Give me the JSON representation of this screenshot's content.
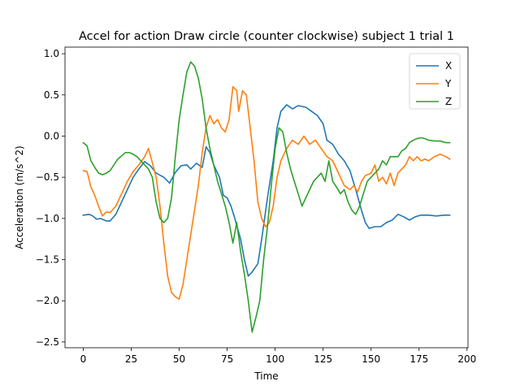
{
  "chart_data": {
    "type": "line",
    "title": "Accel for action Draw circle (counter clockwise) subject 1 trial 1",
    "xlabel": "Time",
    "ylabel": "Acceleration (m/s^2)",
    "xlim": [
      -9.5,
      200.5
    ],
    "ylim": [
      -2.57,
      1.08
    ],
    "xticks": [
      0,
      25,
      50,
      75,
      100,
      125,
      150,
      175,
      200
    ],
    "yticks": [
      -2.5,
      -2.0,
      -1.5,
      -1.0,
      -0.5,
      0.0,
      0.5,
      1.0
    ],
    "ytick_labels": [
      "−2.5",
      "−2.0",
      "−1.5",
      "−1.0",
      "−0.5",
      "0.0",
      "0.5",
      "1.0"
    ],
    "grid": false,
    "legend_position": "top-right",
    "series": [
      {
        "name": "X",
        "color": "#1f77b4",
        "points": [
          [
            0,
            -0.96
          ],
          [
            3,
            -0.95
          ],
          [
            5,
            -0.97
          ],
          [
            7,
            -1.01
          ],
          [
            9,
            -1.0
          ],
          [
            12,
            -1.03
          ],
          [
            14,
            -1.03
          ],
          [
            17,
            -0.95
          ],
          [
            20,
            -0.8
          ],
          [
            23,
            -0.65
          ],
          [
            26,
            -0.5
          ],
          [
            29,
            -0.4
          ],
          [
            32,
            -0.31
          ],
          [
            35,
            -0.36
          ],
          [
            38,
            -0.45
          ],
          [
            42,
            -0.5
          ],
          [
            45,
            -0.57
          ],
          [
            48,
            -0.44
          ],
          [
            51,
            -0.36
          ],
          [
            54,
            -0.35
          ],
          [
            56,
            -0.4
          ],
          [
            59,
            -0.33
          ],
          [
            62,
            -0.38
          ],
          [
            64,
            -0.13
          ],
          [
            66,
            -0.2
          ],
          [
            68,
            -0.35
          ],
          [
            71,
            -0.5
          ],
          [
            73,
            -0.72
          ],
          [
            75,
            -0.75
          ],
          [
            77,
            -0.85
          ],
          [
            79,
            -1.0
          ],
          [
            82,
            -1.25
          ],
          [
            84,
            -1.5
          ],
          [
            86,
            -1.7
          ],
          [
            88,
            -1.65
          ],
          [
            91,
            -1.55
          ],
          [
            93,
            -1.25
          ],
          [
            96,
            -0.75
          ],
          [
            99,
            -0.3
          ],
          [
            101,
            0.1
          ],
          [
            103,
            0.3
          ],
          [
            106,
            0.38
          ],
          [
            109,
            0.33
          ],
          [
            112,
            0.37
          ],
          [
            116,
            0.35
          ],
          [
            119,
            0.3
          ],
          [
            122,
            0.25
          ],
          [
            125,
            0.15
          ],
          [
            127,
            -0.05
          ],
          [
            130,
            -0.1
          ],
          [
            133,
            -0.22
          ],
          [
            136,
            -0.3
          ],
          [
            139,
            -0.42
          ],
          [
            142,
            -0.65
          ],
          [
            145,
            -0.9
          ],
          [
            147,
            -1.05
          ],
          [
            149,
            -1.12
          ],
          [
            152,
            -1.1
          ],
          [
            155,
            -1.1
          ],
          [
            158,
            -1.05
          ],
          [
            161,
            -1.02
          ],
          [
            164,
            -0.95
          ],
          [
            167,
            -0.98
          ],
          [
            170,
            -1.02
          ],
          [
            173,
            -0.98
          ],
          [
            176,
            -0.96
          ],
          [
            180,
            -0.96
          ],
          [
            184,
            -0.97
          ],
          [
            188,
            -0.96
          ],
          [
            191,
            -0.96
          ]
        ]
      },
      {
        "name": "Y",
        "color": "#ff7f0e",
        "points": [
          [
            0,
            -0.42
          ],
          [
            2,
            -0.43
          ],
          [
            4,
            -0.62
          ],
          [
            6,
            -0.72
          ],
          [
            8,
            -0.85
          ],
          [
            10,
            -0.97
          ],
          [
            12,
            -0.92
          ],
          [
            14,
            -0.93
          ],
          [
            17,
            -0.85
          ],
          [
            20,
            -0.7
          ],
          [
            23,
            -0.55
          ],
          [
            26,
            -0.43
          ],
          [
            29,
            -0.35
          ],
          [
            32,
            -0.25
          ],
          [
            34,
            -0.15
          ],
          [
            36,
            -0.32
          ],
          [
            38,
            -0.5
          ],
          [
            40,
            -0.85
          ],
          [
            42,
            -1.3
          ],
          [
            44,
            -1.7
          ],
          [
            46,
            -1.9
          ],
          [
            48,
            -1.95
          ],
          [
            50,
            -1.98
          ],
          [
            52,
            -1.8
          ],
          [
            54,
            -1.5
          ],
          [
            56,
            -1.2
          ],
          [
            58,
            -0.9
          ],
          [
            60,
            -0.6
          ],
          [
            62,
            -0.2
          ],
          [
            64,
            0.1
          ],
          [
            66,
            0.25
          ],
          [
            68,
            0.15
          ],
          [
            70,
            0.2
          ],
          [
            72,
            0.1
          ],
          [
            74,
            0.05
          ],
          [
            76,
            0.2
          ],
          [
            78,
            0.6
          ],
          [
            80,
            0.55
          ],
          [
            81,
            0.3
          ],
          [
            83,
            0.55
          ],
          [
            85,
            0.5
          ],
          [
            87,
            0.1
          ],
          [
            89,
            -0.3
          ],
          [
            91,
            -0.8
          ],
          [
            93,
            -1.0
          ],
          [
            95,
            -1.1
          ],
          [
            97,
            -1.05
          ],
          [
            99,
            -0.85
          ],
          [
            101,
            -0.5
          ],
          [
            103,
            -0.3
          ],
          [
            106,
            -0.15
          ],
          [
            109,
            -0.05
          ],
          [
            112,
            -0.1
          ],
          [
            115,
            0.0
          ],
          [
            118,
            -0.1
          ],
          [
            121,
            -0.05
          ],
          [
            124,
            -0.15
          ],
          [
            127,
            -0.25
          ],
          [
            130,
            -0.3
          ],
          [
            133,
            -0.45
          ],
          [
            136,
            -0.6
          ],
          [
            139,
            -0.65
          ],
          [
            141,
            -0.6
          ],
          [
            143,
            -0.68
          ],
          [
            145,
            -0.55
          ],
          [
            147,
            -0.48
          ],
          [
            150,
            -0.45
          ],
          [
            152,
            -0.35
          ],
          [
            154,
            -0.55
          ],
          [
            156,
            -0.5
          ],
          [
            158,
            -0.58
          ],
          [
            160,
            -0.45
          ],
          [
            162,
            -0.6
          ],
          [
            164,
            -0.45
          ],
          [
            166,
            -0.4
          ],
          [
            168,
            -0.35
          ],
          [
            170,
            -0.25
          ],
          [
            172,
            -0.3
          ],
          [
            174,
            -0.25
          ],
          [
            176,
            -0.3
          ],
          [
            178,
            -0.28
          ],
          [
            180,
            -0.3
          ],
          [
            183,
            -0.25
          ],
          [
            186,
            -0.22
          ],
          [
            189,
            -0.25
          ],
          [
            191,
            -0.28
          ]
        ]
      },
      {
        "name": "Z",
        "color": "#2ca02c",
        "points": [
          [
            0,
            -0.08
          ],
          [
            2,
            -0.12
          ],
          [
            4,
            -0.3
          ],
          [
            6,
            -0.38
          ],
          [
            8,
            -0.45
          ],
          [
            10,
            -0.47
          ],
          [
            12,
            -0.45
          ],
          [
            14,
            -0.42
          ],
          [
            16,
            -0.35
          ],
          [
            18,
            -0.28
          ],
          [
            20,
            -0.24
          ],
          [
            22,
            -0.2
          ],
          [
            24,
            -0.2
          ],
          [
            26,
            -0.22
          ],
          [
            28,
            -0.25
          ],
          [
            30,
            -0.3
          ],
          [
            32,
            -0.35
          ],
          [
            34,
            -0.4
          ],
          [
            36,
            -0.5
          ],
          [
            38,
            -0.8
          ],
          [
            40,
            -1.0
          ],
          [
            42,
            -1.05
          ],
          [
            44,
            -1.0
          ],
          [
            46,
            -0.75
          ],
          [
            48,
            -0.25
          ],
          [
            50,
            0.2
          ],
          [
            52,
            0.5
          ],
          [
            54,
            0.78
          ],
          [
            56,
            0.9
          ],
          [
            58,
            0.85
          ],
          [
            60,
            0.7
          ],
          [
            62,
            0.45
          ],
          [
            64,
            0.1
          ],
          [
            66,
            -0.15
          ],
          [
            68,
            -0.35
          ],
          [
            70,
            -0.55
          ],
          [
            72,
            -0.7
          ],
          [
            74,
            -0.85
          ],
          [
            76,
            -1.05
          ],
          [
            78,
            -1.3
          ],
          [
            80,
            -1.05
          ],
          [
            82,
            -1.4
          ],
          [
            84,
            -1.68
          ],
          [
            86,
            -2.0
          ],
          [
            88,
            -2.38
          ],
          [
            90,
            -2.2
          ],
          [
            92,
            -2.0
          ],
          [
            94,
            -1.5
          ],
          [
            96,
            -1.1
          ],
          [
            98,
            -0.6
          ],
          [
            100,
            -0.15
          ],
          [
            102,
            0.1
          ],
          [
            104,
            0.05
          ],
          [
            106,
            -0.2
          ],
          [
            108,
            -0.4
          ],
          [
            110,
            -0.55
          ],
          [
            112,
            -0.7
          ],
          [
            114,
            -0.85
          ],
          [
            116,
            -0.75
          ],
          [
            118,
            -0.65
          ],
          [
            120,
            -0.55
          ],
          [
            122,
            -0.5
          ],
          [
            124,
            -0.45
          ],
          [
            126,
            -0.55
          ],
          [
            128,
            -0.3
          ],
          [
            130,
            -0.55
          ],
          [
            132,
            -0.62
          ],
          [
            134,
            -0.7
          ],
          [
            136,
            -0.65
          ],
          [
            138,
            -0.8
          ],
          [
            140,
            -0.9
          ],
          [
            142,
            -0.95
          ],
          [
            144,
            -0.85
          ],
          [
            146,
            -0.7
          ],
          [
            148,
            -0.55
          ],
          [
            150,
            -0.5
          ],
          [
            152,
            -0.45
          ],
          [
            154,
            -0.4
          ],
          [
            156,
            -0.3
          ],
          [
            158,
            -0.35
          ],
          [
            160,
            -0.25
          ],
          [
            162,
            -0.25
          ],
          [
            164,
            -0.25
          ],
          [
            166,
            -0.18
          ],
          [
            168,
            -0.15
          ],
          [
            170,
            -0.08
          ],
          [
            172,
            -0.05
          ],
          [
            174,
            -0.03
          ],
          [
            176,
            -0.02
          ],
          [
            178,
            -0.03
          ],
          [
            180,
            -0.05
          ],
          [
            183,
            -0.06
          ],
          [
            186,
            -0.06
          ],
          [
            189,
            -0.08
          ],
          [
            191,
            -0.08
          ]
        ]
      }
    ]
  }
}
